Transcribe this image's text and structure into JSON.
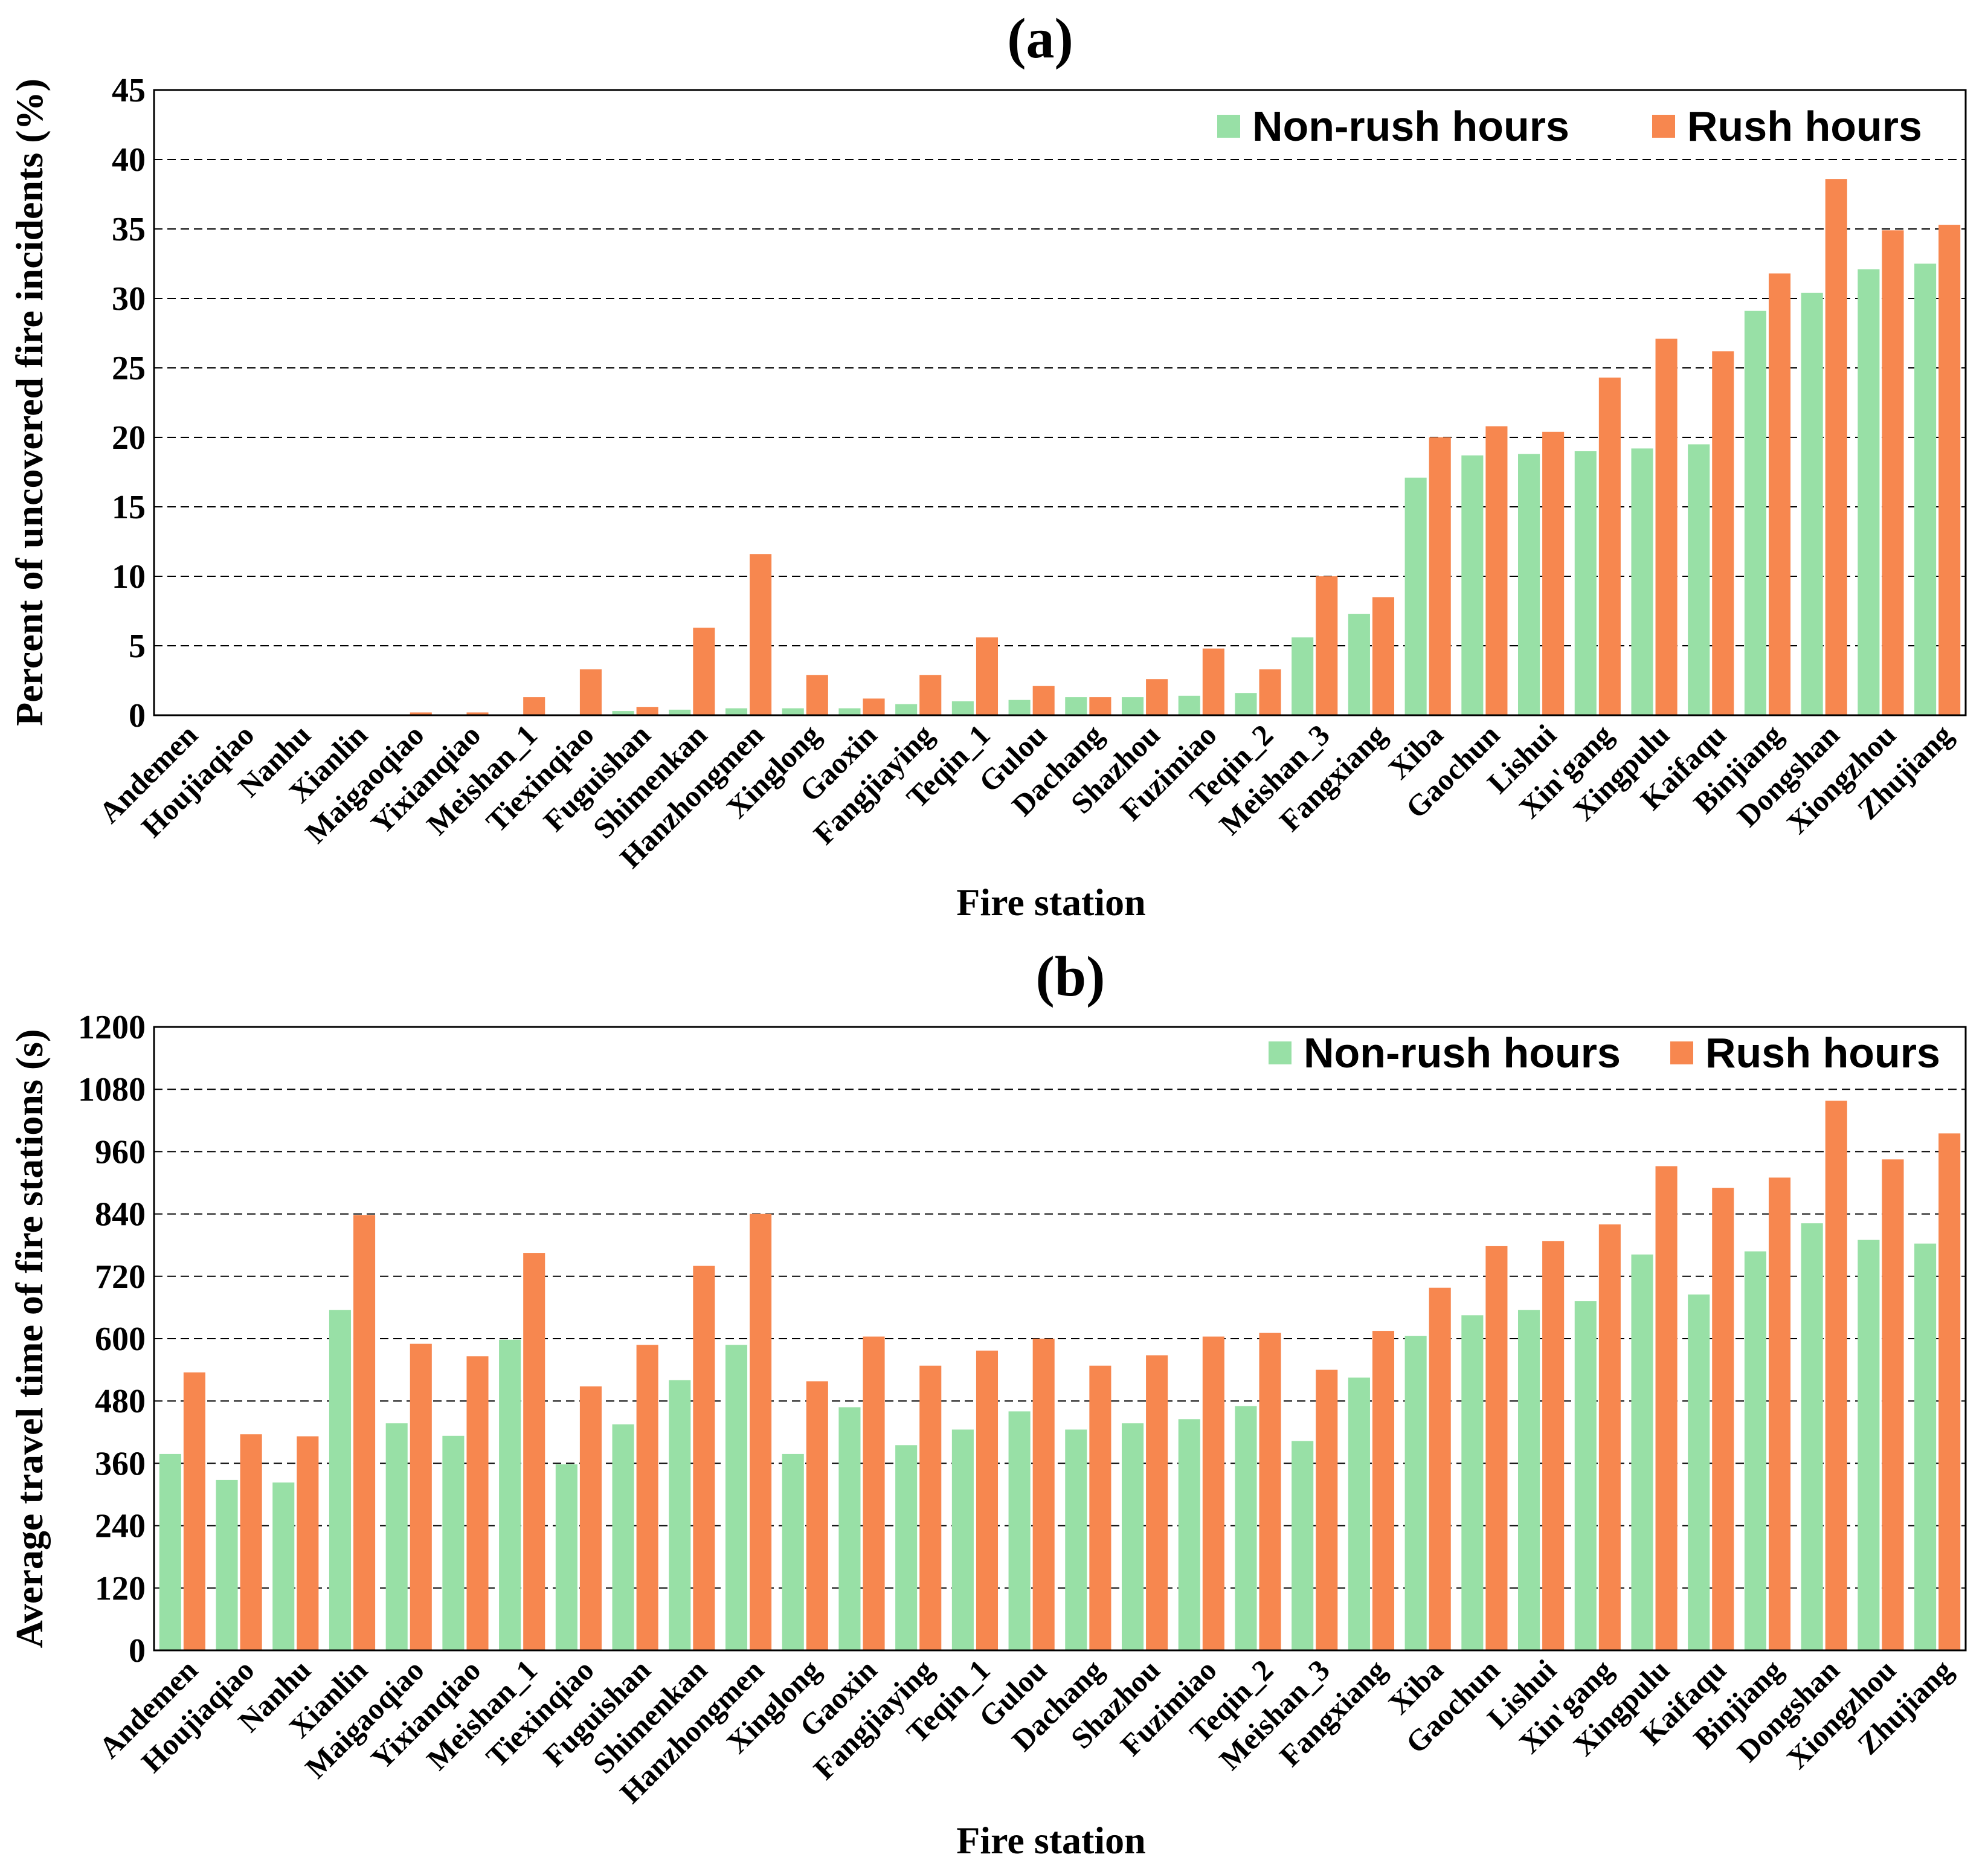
{
  "colors": {
    "non_rush": "#98e0a6",
    "rush": "#f7874f",
    "grid": "#000000",
    "frame": "#000000"
  },
  "chart_data": [
    {
      "panel": "(a)",
      "type": "bar",
      "xlabel": "Fire station",
      "ylabel": "Percent of uncovered fire incidents (%)",
      "ylim": [
        0,
        45
      ],
      "yticks": [
        0,
        5,
        10,
        15,
        20,
        25,
        30,
        35,
        40,
        45
      ],
      "grid": "dashed horizontal",
      "legend_position": "top-right",
      "categories": [
        "Andemen",
        "Houjiaqiao",
        "Nanhu",
        "Xianlin",
        "Maigaoqiao",
        "Yixianqiao",
        "Meishan_1",
        "Tiexinqiao",
        "Fuguishan",
        "Shimenkan",
        "Hanzhongmen",
        "Xinglong",
        "Gaoxin",
        "Fangjiaying",
        "Teqin_1",
        "Gulou",
        "Dachang",
        "Shazhou",
        "Fuzimiao",
        "Teqin_2",
        "Meishan_3",
        "Fangxiang",
        "Xiba",
        "Gaochun",
        "Lishui",
        "Xin'gang",
        "Xingpulu",
        "Kaifaqu",
        "Binjiang",
        "Dongshan",
        "Xiongzhou",
        "Zhujiang"
      ],
      "series": [
        {
          "name": "Non-rush hours",
          "values": [
            0,
            0,
            0,
            0,
            0,
            0,
            0,
            0,
            0.3,
            0.4,
            0.5,
            0.5,
            0.5,
            0.8,
            1.0,
            1.1,
            1.3,
            1.3,
            1.4,
            1.6,
            5.6,
            7.3,
            17.1,
            18.7,
            18.8,
            19.0,
            19.2,
            19.5,
            29.1,
            30.4,
            32.1,
            32.5
          ]
        },
        {
          "name": "Rush hours",
          "values": [
            0,
            0,
            0,
            0,
            0.2,
            0.2,
            1.3,
            3.3,
            0.6,
            6.3,
            11.6,
            2.9,
            1.2,
            2.9,
            5.6,
            2.1,
            1.3,
            2.6,
            4.8,
            3.3,
            10.0,
            8.5,
            20.0,
            20.8,
            20.4,
            24.3,
            27.1,
            26.2,
            31.8,
            38.6,
            34.9,
            35.3
          ]
        }
      ]
    },
    {
      "panel": "(b)",
      "type": "bar",
      "xlabel": "Fire station",
      "ylabel": "Average travel time of fire stations (s)",
      "ylim": [
        0,
        1200
      ],
      "yticks": [
        0,
        120,
        240,
        360,
        480,
        600,
        720,
        840,
        960,
        1080,
        1200
      ],
      "grid": "dashed horizontal",
      "legend_position": "top-right",
      "categories": [
        "Andemen",
        "Houjiaqiao",
        "Nanhu",
        "Xianlin",
        "Maigaoqiao",
        "Yixianqiao",
        "Meishan_1",
        "Tiexinqiao",
        "Fuguishan",
        "Shimenkan",
        "Hanzhongmen",
        "Xinglong",
        "Gaoxin",
        "Fangjiaying",
        "Teqin_1",
        "Gulou",
        "Dachang",
        "Shazhou",
        "Fuzimiao",
        "Teqin_2",
        "Meishan_3",
        "Fangxiang",
        "Xiba",
        "Gaochun",
        "Lishui",
        "Xin'gang",
        "Xingpulu",
        "Kaifaqu",
        "Binjiang",
        "Dongshan",
        "Xiongzhou",
        "Zhujiang"
      ],
      "series": [
        {
          "name": "Non-rush hours",
          "values": [
            378,
            328,
            323,
            655,
            437,
            413,
            598,
            358,
            435,
            520,
            588,
            378,
            468,
            395,
            425,
            460,
            425,
            437,
            445,
            470,
            403,
            525,
            605,
            645,
            655,
            672,
            762,
            685,
            768,
            822,
            790,
            783
          ]
        },
        {
          "name": "Rush hours",
          "values": [
            535,
            416,
            412,
            838,
            590,
            566,
            765,
            508,
            588,
            740,
            840,
            518,
            604,
            548,
            577,
            600,
            548,
            568,
            604,
            611,
            540,
            615,
            698,
            778,
            788,
            820,
            932,
            890,
            910,
            1058,
            945,
            995
          ]
        }
      ]
    }
  ]
}
